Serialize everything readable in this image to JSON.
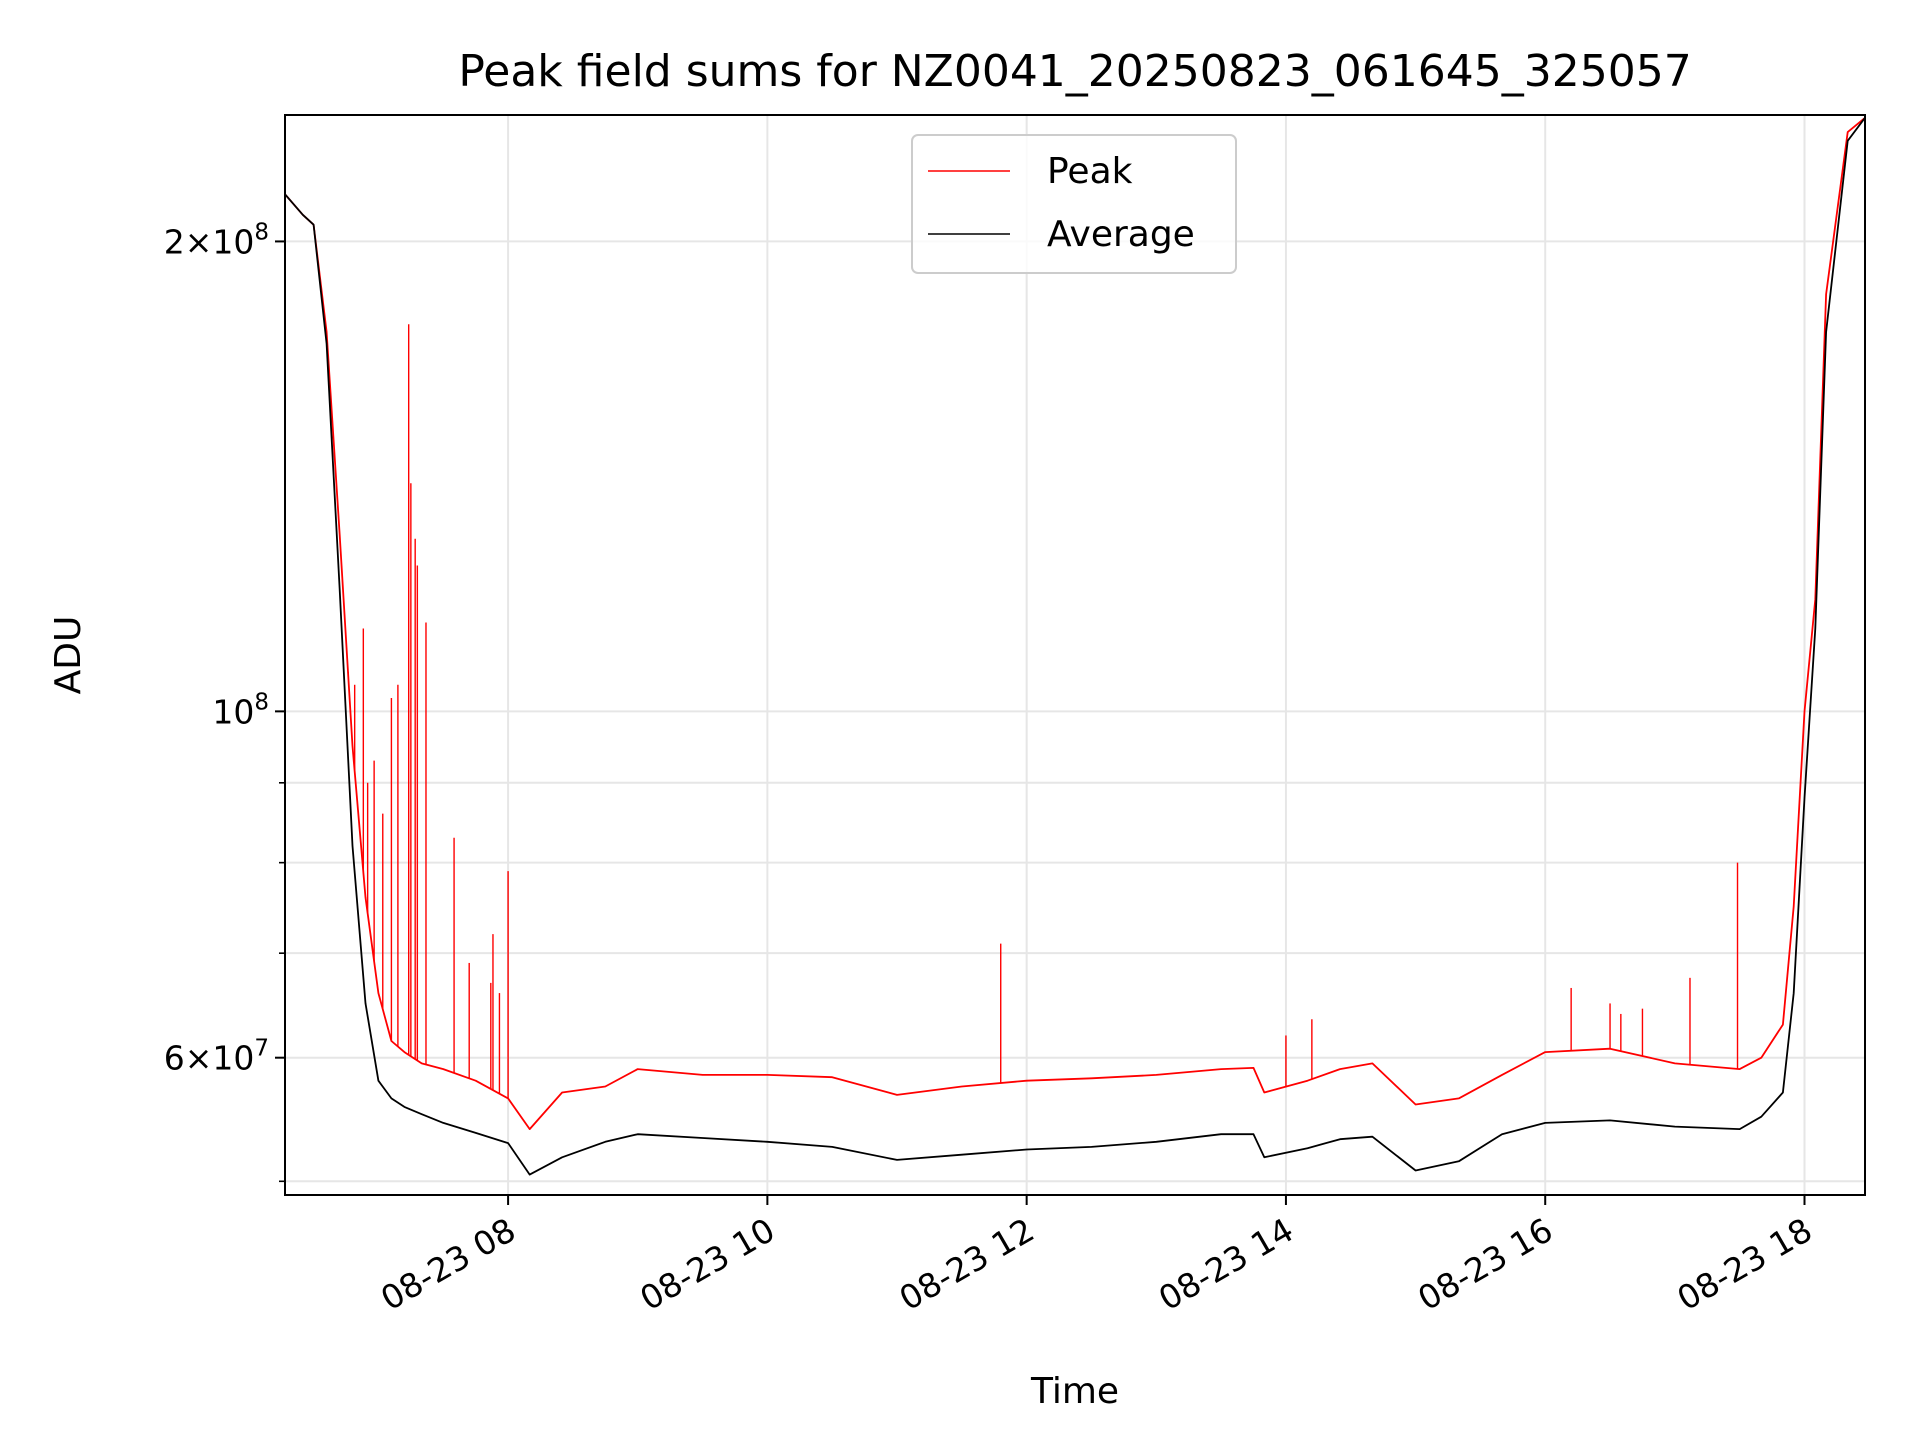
{
  "chart_data": {
    "type": "line",
    "title": "Peak field sums for NZ0041_20250823_061645_325057",
    "xlabel": "Time",
    "ylabel": "ADU",
    "yscale": "log",
    "ylim": [
      49000000,
      241000000
    ],
    "xlim": [
      "08-23 06:16:45",
      "08-23 18:28"
    ],
    "grid": true,
    "legend": "top-center",
    "x_ticks": [
      "08-23 08",
      "08-23 10",
      "08-23 12",
      "08-23 14",
      "08-23 16",
      "08-23 18"
    ],
    "y_ticks": [
      {
        "value": 60000000,
        "mantissa": "6",
        "exp": "7"
      },
      {
        "value": 100000000,
        "mantissa": "",
        "exp": "8"
      },
      {
        "value": 200000000,
        "mantissa": "2",
        "exp": "8"
      }
    ],
    "y_minor_ticks": [
      50000000,
      70000000,
      80000000,
      90000000
    ],
    "series": [
      {
        "name": "Peak",
        "color": "#ff0000",
        "x": [
          "08-23 06:16",
          "08-23 06:25",
          "08-23 06:30",
          "08-23 06:36",
          "08-23 06:42",
          "08-23 06:48",
          "08-23 06:54",
          "08-23 07:00",
          "08-23 07:06",
          "08-23 07:12",
          "08-23 07:20",
          "08-23 07:30",
          "08-23 07:45",
          "08-23 08:00",
          "08-23 08:10",
          "08-23 08:25",
          "08-23 08:45",
          "08-23 09:00",
          "08-23 09:30",
          "08-23 10:00",
          "08-23 10:30",
          "08-23 11:00",
          "08-23 11:30",
          "08-23 12:00",
          "08-23 12:30",
          "08-23 13:00",
          "08-23 13:30",
          "08-23 13:45",
          "08-23 13:50",
          "08-23 14:10",
          "08-23 14:25",
          "08-23 14:40",
          "08-23 15:00",
          "08-23 15:20",
          "08-23 15:40",
          "08-23 16:00",
          "08-23 16:30",
          "08-23 17:00",
          "08-23 17:30",
          "08-23 17:40",
          "08-23 17:50",
          "08-23 17:55",
          "08-23 18:00",
          "08-23 18:05",
          "08-23 18:10",
          "08-23 18:20",
          "08-23 18:28"
        ],
        "y": [
          215000000,
          208000000,
          205000000,
          175000000,
          130000000,
          95000000,
          76000000,
          66000000,
          61500000,
          60500000,
          59500000,
          59000000,
          58000000,
          56500000,
          54000000,
          57000000,
          57500000,
          59000000,
          58500000,
          58500000,
          58300000,
          56800000,
          57500000,
          58000000,
          58200000,
          58500000,
          59000000,
          59100000,
          57000000,
          58000000,
          59000000,
          59500000,
          56000000,
          56500000,
          58500000,
          60500000,
          60800000,
          59500000,
          59000000,
          60000000,
          63000000,
          75000000,
          100000000,
          118000000,
          185000000,
          235000000,
          240000000
        ],
        "spikes": [
          {
            "x": "08-23 06:46",
            "y": 106000000
          },
          {
            "x": "08-23 06:49",
            "y": 104000000
          },
          {
            "x": "08-23 06:53",
            "y": 113000000
          },
          {
            "x": "08-23 06:55",
            "y": 90000000
          },
          {
            "x": "08-23 06:58",
            "y": 93000000
          },
          {
            "x": "08-23 07:02",
            "y": 86000000
          },
          {
            "x": "08-23 07:06",
            "y": 102000000
          },
          {
            "x": "08-23 07:09",
            "y": 104000000
          },
          {
            "x": "08-23 07:14",
            "y": 177000000
          },
          {
            "x": "08-23 07:15",
            "y": 140000000
          },
          {
            "x": "08-23 07:17",
            "y": 129000000
          },
          {
            "x": "08-23 07:18",
            "y": 124000000
          },
          {
            "x": "08-23 07:22",
            "y": 114000000
          },
          {
            "x": "08-23 07:35",
            "y": 83000000
          },
          {
            "x": "08-23 07:42",
            "y": 69000000
          },
          {
            "x": "08-23 07:52",
            "y": 67000000
          },
          {
            "x": "08-23 07:53",
            "y": 72000000
          },
          {
            "x": "08-23 07:56",
            "y": 66000000
          },
          {
            "x": "08-23 08:00",
            "y": 79000000
          },
          {
            "x": "08-23 11:48",
            "y": 71000000
          },
          {
            "x": "08-23 14:00",
            "y": 62000000
          },
          {
            "x": "08-23 14:12",
            "y": 63500000
          },
          {
            "x": "08-23 16:12",
            "y": 66500000
          },
          {
            "x": "08-23 16:30",
            "y": 65000000
          },
          {
            "x": "08-23 16:35",
            "y": 64000000
          },
          {
            "x": "08-23 16:45",
            "y": 64500000
          },
          {
            "x": "08-23 17:07",
            "y": 67500000
          },
          {
            "x": "08-23 17:29",
            "y": 80000000
          }
        ]
      },
      {
        "name": "Average",
        "color": "#000000",
        "x": [
          "08-23 06:16",
          "08-23 06:25",
          "08-23 06:30",
          "08-23 06:36",
          "08-23 06:42",
          "08-23 06:48",
          "08-23 06:54",
          "08-23 07:00",
          "08-23 07:06",
          "08-23 07:12",
          "08-23 07:20",
          "08-23 07:30",
          "08-23 07:45",
          "08-23 08:00",
          "08-23 08:10",
          "08-23 08:25",
          "08-23 08:45",
          "08-23 09:00",
          "08-23 09:30",
          "08-23 10:00",
          "08-23 10:30",
          "08-23 11:00",
          "08-23 11:30",
          "08-23 12:00",
          "08-23 12:30",
          "08-23 13:00",
          "08-23 13:30",
          "08-23 13:45",
          "08-23 13:50",
          "08-23 14:10",
          "08-23 14:25",
          "08-23 14:40",
          "08-23 15:00",
          "08-23 15:20",
          "08-23 15:40",
          "08-23 16:00",
          "08-23 16:30",
          "08-23 17:00",
          "08-23 17:30",
          "08-23 17:40",
          "08-23 17:50",
          "08-23 17:55",
          "08-23 18:00",
          "08-23 18:05",
          "08-23 18:10",
          "08-23 18:20",
          "08-23 18:28"
        ],
        "y": [
          215000000,
          208000000,
          205000000,
          172000000,
          120000000,
          82000000,
          65000000,
          58000000,
          56500000,
          55800000,
          55200000,
          54500000,
          53700000,
          52900000,
          50500000,
          51800000,
          53000000,
          53600000,
          53300000,
          53000000,
          52600000,
          51600000,
          52000000,
          52400000,
          52600000,
          53000000,
          53600000,
          53600000,
          51800000,
          52500000,
          53200000,
          53400000,
          50800000,
          51500000,
          53600000,
          54500000,
          54700000,
          54200000,
          54000000,
          55000000,
          57000000,
          66000000,
          88000000,
          113000000,
          175000000,
          232000000,
          240000000
        ]
      }
    ]
  }
}
